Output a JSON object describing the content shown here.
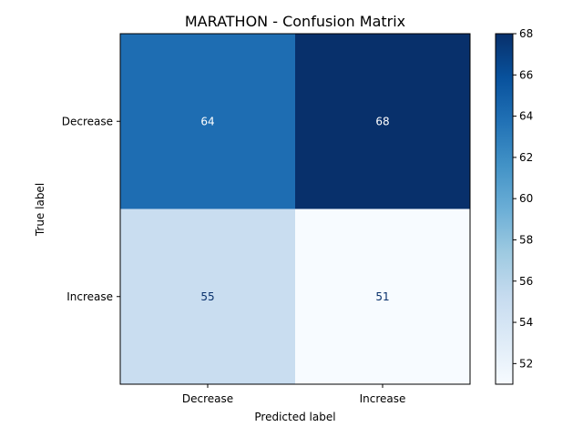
{
  "chart_data": {
    "type": "heatmap",
    "title": "MARATHON - Confusion Matrix",
    "xlabel": "Predicted label",
    "ylabel": "True label",
    "x_categories": [
      "Decrease",
      "Increase"
    ],
    "y_categories": [
      "Decrease",
      "Increase"
    ],
    "values": [
      [
        64,
        68
      ],
      [
        55,
        51
      ]
    ],
    "colormap": "Blues",
    "colorbar": {
      "range": [
        51,
        68
      ],
      "ticks": [
        52,
        54,
        56,
        58,
        60,
        62,
        64,
        66,
        68
      ]
    }
  }
}
